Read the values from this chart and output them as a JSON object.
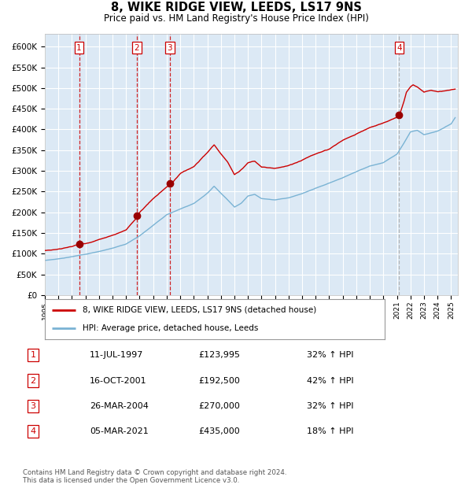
{
  "title": "8, WIKE RIDGE VIEW, LEEDS, LS17 9NS",
  "subtitle": "Price paid vs. HM Land Registry's House Price Index (HPI)",
  "xlim_start": 1995.0,
  "xlim_end": 2025.5,
  "ylim_min": 0,
  "ylim_max": 630000,
  "plot_bg_color": "#dce9f5",
  "grid_color": "#ffffff",
  "hpi_line_color": "#7ab3d4",
  "price_line_color": "#cc0000",
  "sale_marker_color": "#990000",
  "sale_points": [
    {
      "date_year": 1997.53,
      "price": 123995,
      "label": "1"
    },
    {
      "date_year": 2001.79,
      "price": 192500,
      "label": "2"
    },
    {
      "date_year": 2004.23,
      "price": 270000,
      "label": "3"
    },
    {
      "date_year": 2021.17,
      "price": 435000,
      "label": "4"
    }
  ],
  "legend_line1": "8, WIKE RIDGE VIEW, LEEDS, LS17 9NS (detached house)",
  "legend_line2": "HPI: Average price, detached house, Leeds",
  "table_entries": [
    {
      "num": "1",
      "date": "11-JUL-1997",
      "price": "£123,995",
      "hpi": "32% ↑ HPI"
    },
    {
      "num": "2",
      "date": "16-OCT-2001",
      "price": "£192,500",
      "hpi": "42% ↑ HPI"
    },
    {
      "num": "3",
      "date": "26-MAR-2004",
      "price": "£270,000",
      "hpi": "32% ↑ HPI"
    },
    {
      "num": "4",
      "date": "05-MAR-2021",
      "price": "£435,000",
      "hpi": "18% ↑ HPI"
    }
  ],
  "footnote": "Contains HM Land Registry data © Crown copyright and database right 2024.\nThis data is licensed under the Open Government Licence v3.0.",
  "ytick_labels": [
    "£0",
    "£50K",
    "£100K",
    "£150K",
    "£200K",
    "£250K",
    "£300K",
    "£350K",
    "£400K",
    "£450K",
    "£500K",
    "£550K",
    "£600K"
  ],
  "ytick_values": [
    0,
    50000,
    100000,
    150000,
    200000,
    250000,
    300000,
    350000,
    400000,
    450000,
    500000,
    550000,
    600000
  ],
  "xtick_years": [
    1995,
    1996,
    1997,
    1998,
    1999,
    2000,
    2001,
    2002,
    2003,
    2004,
    2005,
    2006,
    2007,
    2008,
    2009,
    2010,
    2011,
    2012,
    2013,
    2014,
    2015,
    2016,
    2017,
    2018,
    2019,
    2020,
    2021,
    2022,
    2023,
    2024,
    2025
  ],
  "hpi_anchors_x": [
    1995.0,
    1996.0,
    1997.0,
    1998.0,
    1999.0,
    2000.0,
    2001.0,
    2002.0,
    2003.0,
    2004.0,
    2005.0,
    2006.0,
    2007.0,
    2007.5,
    2008.0,
    2008.5,
    2009.0,
    2009.5,
    2010.0,
    2010.5,
    2011.0,
    2012.0,
    2013.0,
    2014.0,
    2015.0,
    2016.0,
    2017.0,
    2018.0,
    2019.0,
    2020.0,
    2021.0,
    2021.5,
    2022.0,
    2022.5,
    2023.0,
    2023.5,
    2024.0,
    2025.0,
    2025.3
  ],
  "hpi_anchors_y": [
    84000,
    88000,
    93000,
    99000,
    106000,
    114000,
    124000,
    144000,
    170000,
    196000,
    210000,
    224000,
    248000,
    265000,
    248000,
    232000,
    215000,
    224000,
    242000,
    246000,
    236000,
    233000,
    238000,
    248000,
    260000,
    272000,
    286000,
    300000,
    314000,
    322000,
    342000,
    368000,
    396000,
    400000,
    390000,
    394000,
    398000,
    415000,
    430000
  ],
  "price_anchors_x": [
    1995.0,
    1996.0,
    1997.0,
    1997.53,
    1998.0,
    1999.0,
    2000.0,
    2001.0,
    2001.79,
    2002.0,
    2003.0,
    2004.0,
    2004.23,
    2005.0,
    2006.0,
    2007.0,
    2007.5,
    2008.0,
    2008.5,
    2009.0,
    2009.5,
    2010.0,
    2010.5,
    2011.0,
    2012.0,
    2013.0,
    2014.0,
    2015.0,
    2016.0,
    2017.0,
    2018.0,
    2019.0,
    2020.0,
    2021.0,
    2021.17,
    2021.5,
    2021.7,
    2022.0,
    2022.2,
    2022.5,
    2022.8,
    2023.0,
    2023.5,
    2024.0,
    2025.0,
    2025.3
  ],
  "price_anchors_y": [
    108000,
    113000,
    119000,
    123995,
    126000,
    136000,
    148000,
    162000,
    192500,
    205000,
    238000,
    268000,
    270000,
    300000,
    318000,
    352000,
    370000,
    348000,
    328000,
    298000,
    310000,
    326000,
    330000,
    316000,
    312000,
    318000,
    330000,
    345000,
    355000,
    375000,
    390000,
    406000,
    418000,
    432000,
    435000,
    468000,
    492000,
    505000,
    510000,
    505000,
    498000,
    493000,
    498000,
    495000,
    500000,
    502000
  ]
}
